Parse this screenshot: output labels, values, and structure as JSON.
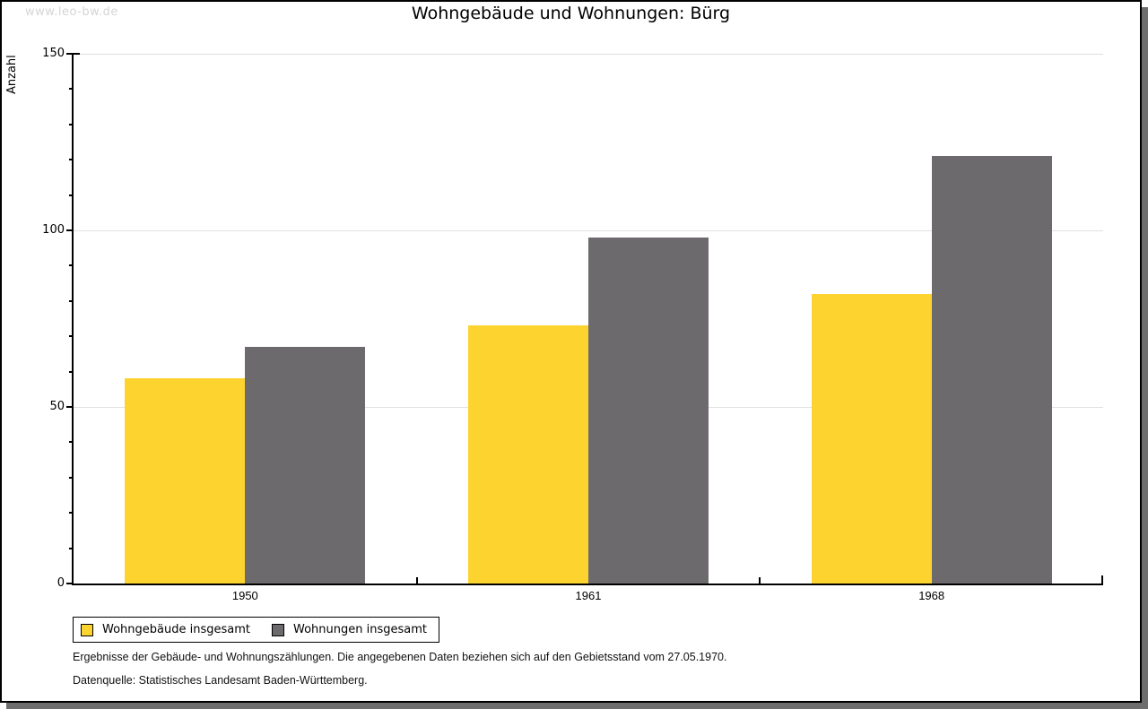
{
  "watermark": "www.leo-bw.de",
  "header": {
    "title": "Wohngebäude und Wohnungen: Bürg"
  },
  "chart_data": {
    "type": "bar",
    "title": "Wohngebäude und Wohnungen: Bürg",
    "categories": [
      "1950",
      "1961",
      "1968"
    ],
    "series": [
      {
        "name": "Wohngebäude insgesamt",
        "color": "#fcd32f",
        "values": [
          58,
          73,
          82
        ]
      },
      {
        "name": "Wohnungen insgesamt",
        "color": "#6d6a6d",
        "values": [
          67,
          98,
          121
        ]
      }
    ],
    "xlabel": "",
    "ylabel": "Anzahl",
    "ylim": [
      0,
      150
    ],
    "y_major_ticks": [
      0,
      50,
      100,
      150
    ],
    "y_minor_step": 10,
    "grid": "horizontal-major",
    "gridline_color": "#e0e0e0",
    "legend_position": "bottom-left",
    "bar_gap_within_group": 0
  },
  "legend": {
    "items": [
      {
        "label": "Wohngebäude insgesamt",
        "color": "#fcd32f"
      },
      {
        "label": "Wohnungen insgesamt",
        "color": "#6d6a6d"
      }
    ]
  },
  "footnotes": {
    "line1": "Ergebnisse der Gebäude- und Wohnungszählungen. Die angegebenen Daten beziehen sich auf den Gebietsstand vom 27.05.1970.",
    "line2": "Datenquelle: Statistisches Landesamt Baden-Württemberg."
  }
}
